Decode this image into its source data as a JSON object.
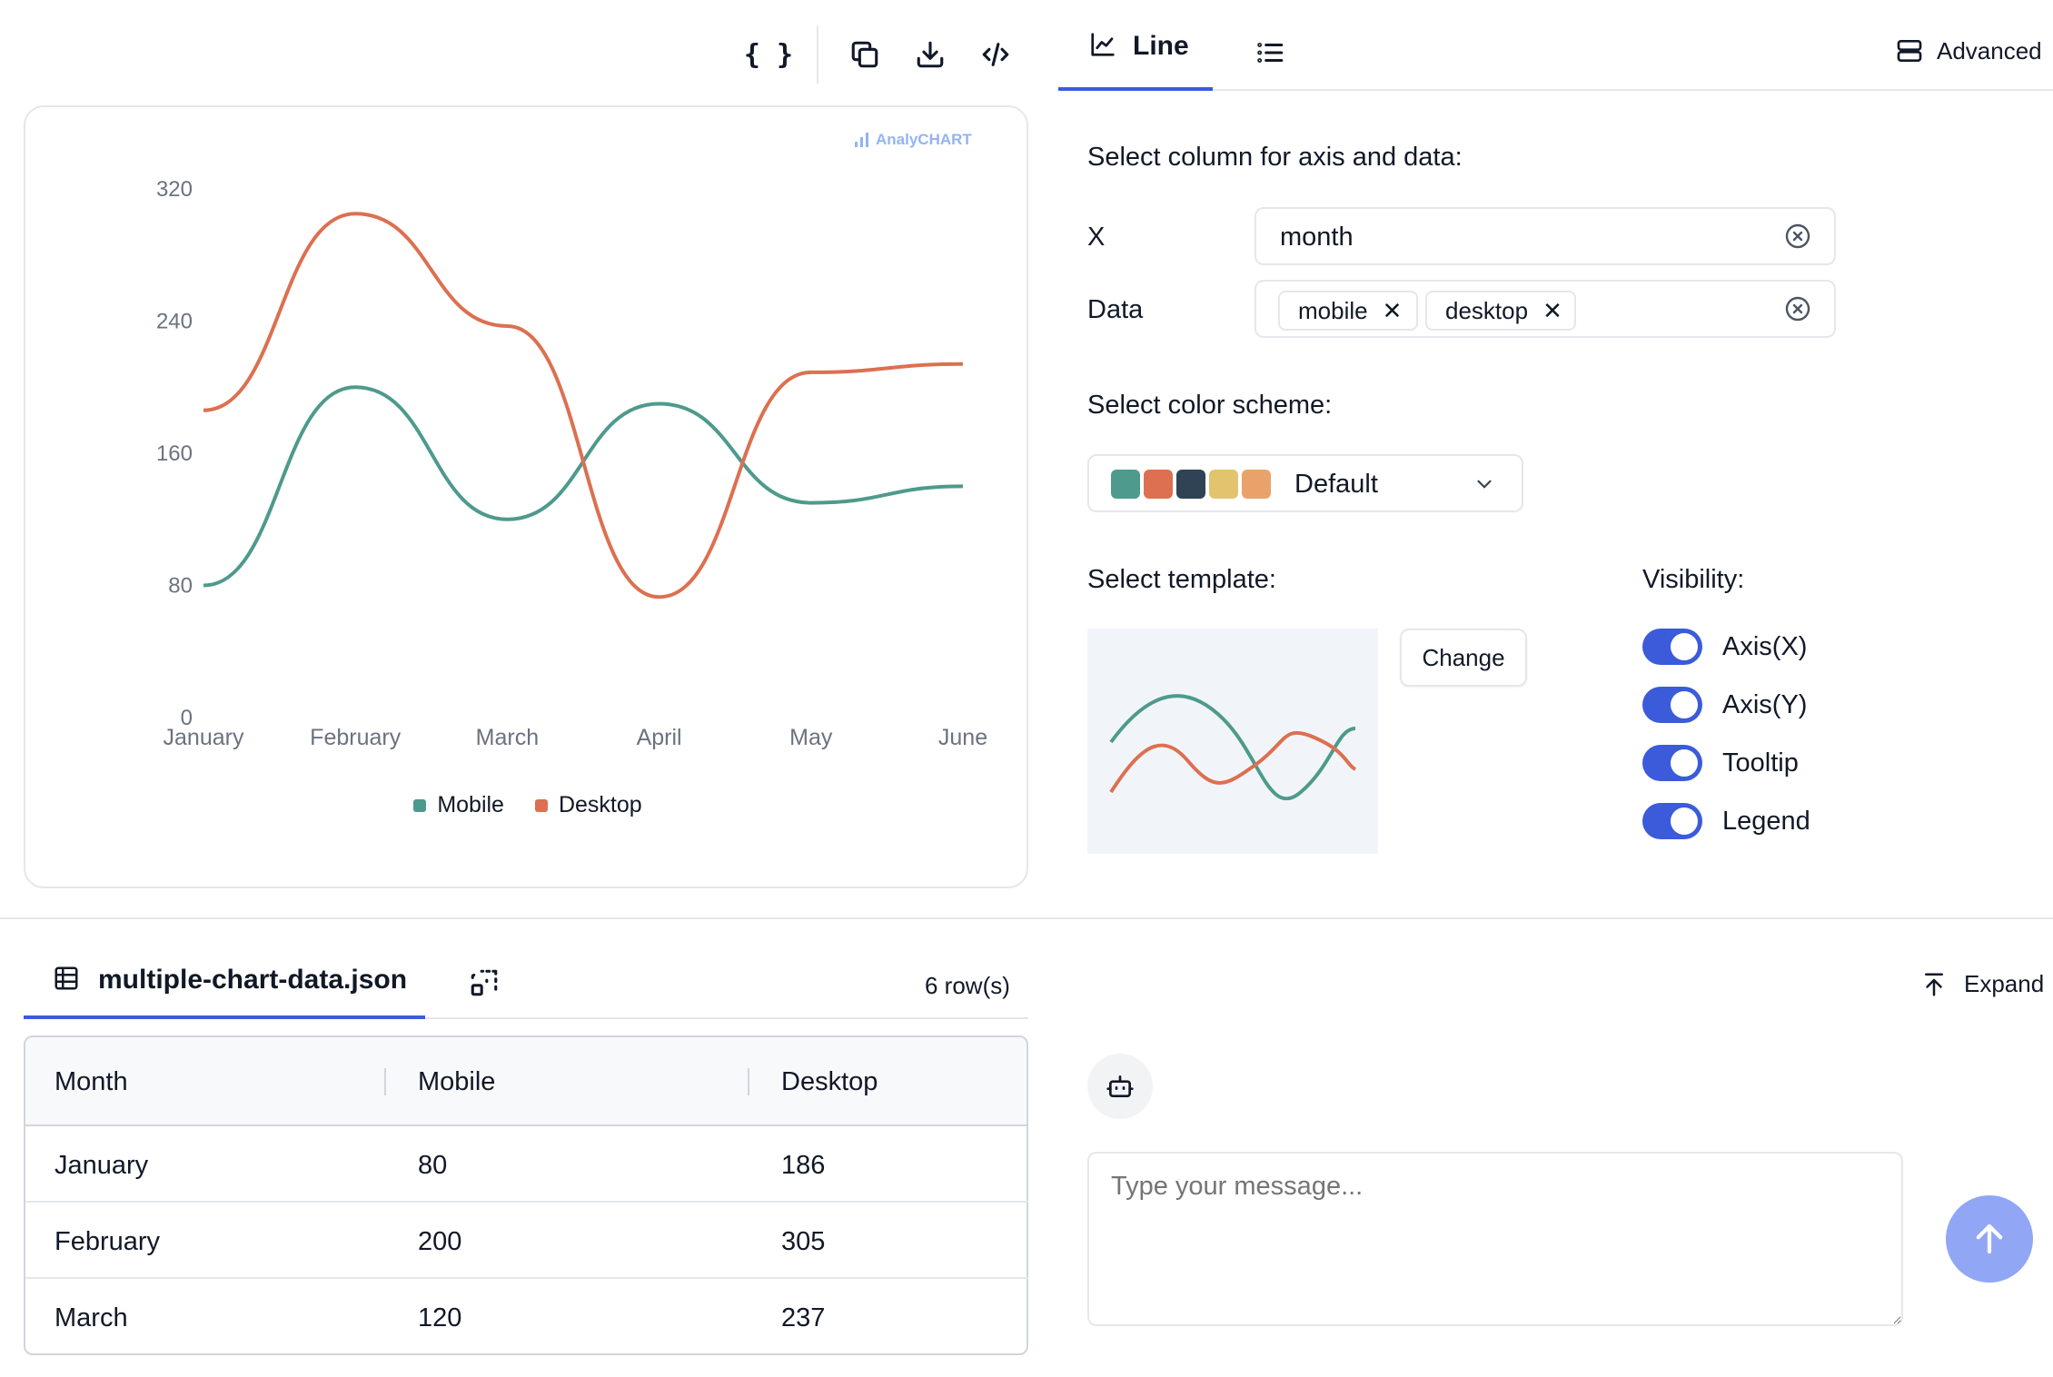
{
  "toolbar": {
    "json_icon_text": "{ }",
    "tabs": [
      {
        "label": "Line"
      }
    ],
    "advanced_label": "Advanced"
  },
  "chart_data": {
    "type": "line",
    "categories": [
      "January",
      "February",
      "March",
      "April",
      "May",
      "June"
    ],
    "series": [
      {
        "name": "Mobile",
        "values": [
          80,
          200,
          120,
          190,
          130,
          140
        ],
        "color": "#4e9a8d"
      },
      {
        "name": "Desktop",
        "values": [
          186,
          305,
          237,
          73,
          209,
          214
        ],
        "color": "#dc7050"
      }
    ],
    "y_ticks": [
      "0",
      "80",
      "160",
      "240",
      "320"
    ],
    "ylim": [
      0,
      320
    ],
    "legend_position": "bottom",
    "watermark": "AnalyCHART",
    "curve": "smooth"
  },
  "settings": {
    "select_column_label": "Select column for axis and data:",
    "x_label": "X",
    "x_value": "month",
    "data_label": "Data",
    "data_chips": [
      "mobile",
      "desktop"
    ],
    "color_scheme_label": "Select color scheme:",
    "color_scheme_value": "Default",
    "color_swatches": [
      "#4e9a8d",
      "#dc7050",
      "#2f4354",
      "#e2c46f",
      "#e9a36a"
    ],
    "template_label": "Select template:",
    "change_button": "Change",
    "visibility_label": "Visibility:",
    "toggles": [
      {
        "label": "Axis(X)",
        "on": true
      },
      {
        "label": "Axis(Y)",
        "on": true
      },
      {
        "label": "Tooltip",
        "on": true
      },
      {
        "label": "Legend",
        "on": true
      }
    ]
  },
  "data_panel": {
    "file_name": "multiple-chart-data.json",
    "row_count": "6 row(s)",
    "expand_label": "Expand",
    "columns": [
      "Month",
      "Mobile",
      "Desktop"
    ],
    "rows": [
      [
        "January",
        "80",
        "186"
      ],
      [
        "February",
        "200",
        "305"
      ],
      [
        "March",
        "120",
        "237"
      ]
    ]
  },
  "chat": {
    "placeholder": "Type your message..."
  }
}
